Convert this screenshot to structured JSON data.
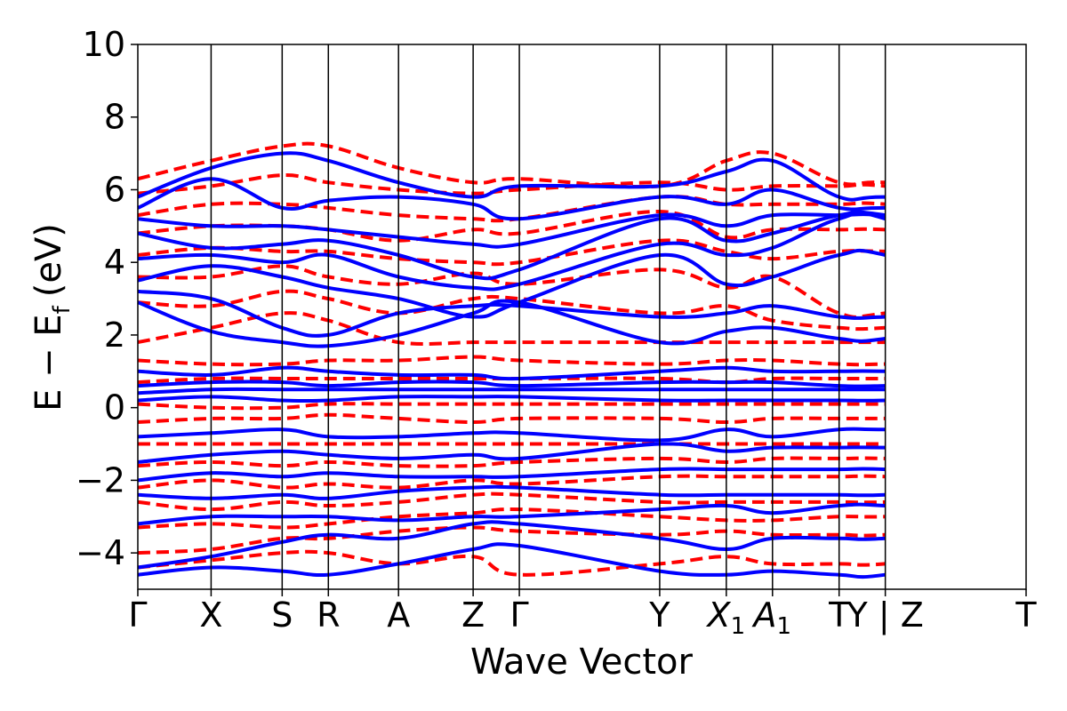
{
  "chart_data": {
    "type": "line",
    "xlabel": "Wave Vector",
    "ylabel": "E − E_f (eV)",
    "ylabel_parts": {
      "main": "E − E",
      "sub": "f",
      "unit": "(eV)"
    },
    "ylim": [
      -5,
      10
    ],
    "yticks": [
      -4,
      -2,
      0,
      2,
      4,
      6,
      8,
      10
    ],
    "ytick_labels": [
      "−4",
      "−2",
      "0",
      "2",
      "4",
      "6",
      "8",
      "10"
    ],
    "kpath": [
      {
        "label": "Γ",
        "k": 0.0
      },
      {
        "label": "X",
        "k": 0.0825
      },
      {
        "label": "S",
        "k": 0.1625
      },
      {
        "label": "R",
        "k": 0.2145
      },
      {
        "label": "A",
        "k": 0.2935
      },
      {
        "label": "Z",
        "k": 0.3775
      },
      {
        "label": "Γ",
        "k": 0.4295
      },
      {
        "label": "Y",
        "k": 0.5875
      },
      {
        "label": "X",
        "sub": "1",
        "k": 0.6625
      },
      {
        "label": "A",
        "sub": "1",
        "k": 0.7145
      },
      {
        "label": "T",
        "k": 0.7895
      },
      {
        "label": "Y | Z",
        "k": 0.8415
      },
      {
        "label": "T",
        "k": 1.0
      }
    ],
    "xlim": [
      0,
      1
    ],
    "grid": false,
    "series": [
      {
        "style": "solid",
        "color": "#0000ff",
        "bands": [
          [
            -4.6,
            -4.4,
            -4.5,
            -4.6,
            -4.3,
            -3.9,
            -3.8,
            -4.5,
            -4.6,
            -4.5,
            -4.6,
            -4.6,
            -3.9,
            -4.6
          ],
          [
            -4.4,
            -4.1,
            -3.7,
            -3.5,
            -3.6,
            -3.2,
            -3.2,
            -3.6,
            -3.9,
            -3.6,
            -3.6,
            -3.6,
            -3.3,
            -3.5
          ],
          [
            -3.2,
            -3.0,
            -3.0,
            -3.0,
            -3.1,
            -3.0,
            -3.0,
            -2.8,
            -2.7,
            -2.9,
            -2.7,
            -2.7,
            -3.0,
            -2.6
          ],
          [
            -2.4,
            -2.5,
            -2.4,
            -2.5,
            -2.3,
            -2.2,
            -2.2,
            -2.4,
            -2.4,
            -2.4,
            -2.4,
            -2.4,
            -2.2,
            -2.4
          ],
          [
            -2.0,
            -1.8,
            -1.9,
            -1.8,
            -1.9,
            -1.9,
            -1.9,
            -1.7,
            -1.7,
            -1.7,
            -1.7,
            -1.7,
            -1.9,
            -1.8
          ],
          [
            -1.5,
            -1.3,
            -1.2,
            -1.3,
            -1.4,
            -1.3,
            -1.4,
            -1.0,
            -1.2,
            -1.1,
            -1.1,
            -1.1,
            -1.2,
            -1.0
          ],
          [
            -0.8,
            -0.7,
            -0.6,
            -0.8,
            -0.8,
            -0.7,
            -0.7,
            -0.9,
            -0.6,
            -0.8,
            -0.6,
            -0.6,
            -0.6,
            -0.9
          ],
          [
            0.2,
            0.3,
            0.2,
            0.2,
            0.3,
            0.3,
            0.3,
            0.2,
            0.2,
            0.2,
            0.2,
            0.2,
            0.3,
            0.2
          ],
          [
            0.4,
            0.5,
            0.5,
            0.5,
            0.5,
            0.5,
            0.5,
            0.5,
            0.5,
            0.5,
            0.5,
            0.5,
            0.5,
            0.5
          ],
          [
            0.6,
            0.7,
            0.7,
            0.6,
            0.7,
            0.7,
            0.6,
            0.7,
            0.7,
            0.7,
            0.6,
            0.6,
            0.7,
            0.6
          ],
          [
            1.0,
            0.9,
            1.1,
            1.0,
            0.9,
            0.9,
            0.8,
            1.0,
            1.1,
            1.0,
            1.0,
            1.0,
            0.9,
            1.0
          ],
          [
            2.9,
            2.1,
            1.8,
            1.7,
            2.0,
            2.6,
            2.9,
            1.8,
            2.1,
            2.2,
            1.9,
            1.9,
            2.6,
            2.1
          ],
          [
            3.2,
            3.0,
            2.2,
            2.0,
            2.6,
            2.8,
            2.8,
            2.5,
            2.6,
            2.8,
            2.5,
            2.5,
            2.7,
            3.0
          ],
          [
            3.5,
            3.9,
            3.6,
            3.3,
            3.0,
            2.5,
            2.9,
            4.2,
            3.4,
            3.6,
            4.2,
            4.2,
            3.0,
            4.1
          ],
          [
            4.1,
            4.2,
            4.0,
            4.2,
            3.6,
            3.3,
            3.4,
            4.5,
            4.2,
            4.4,
            5.2,
            5.2,
            3.6,
            4.7
          ],
          [
            4.8,
            4.4,
            4.5,
            4.6,
            4.2,
            3.6,
            3.8,
            5.2,
            4.6,
            4.8,
            5.3,
            5.3,
            4.6,
            5.2
          ],
          [
            5.2,
            5.0,
            5.0,
            4.9,
            4.7,
            4.5,
            4.5,
            5.3,
            5.0,
            5.3,
            5.3,
            5.3,
            5.0,
            5.4
          ],
          [
            5.5,
            6.3,
            5.5,
            5.7,
            5.8,
            5.6,
            5.2,
            5.8,
            5.6,
            6.0,
            5.5,
            5.5,
            5.5,
            6.0
          ],
          [
            5.8,
            6.6,
            7.0,
            6.8,
            6.2,
            5.8,
            6.1,
            6.1,
            6.5,
            6.8,
            5.8,
            5.8,
            5.7,
            6.1
          ]
        ]
      },
      {
        "style": "dashed",
        "color": "#ff0000",
        "bands": [
          [
            -4.4,
            -4.2,
            -4.0,
            -4.0,
            -4.3,
            -4.1,
            -4.6,
            -4.3,
            -4.1,
            -4.3,
            -4.3,
            -4.3,
            -3.9,
            -4.3
          ],
          [
            -4.0,
            -3.9,
            -3.6,
            -3.6,
            -3.4,
            -3.3,
            -3.4,
            -3.5,
            -3.4,
            -3.5,
            -3.5,
            -3.5,
            -3.2,
            -3.6
          ],
          [
            -3.3,
            -3.2,
            -3.3,
            -3.2,
            -3.0,
            -2.9,
            -2.8,
            -3.0,
            -3.1,
            -3.1,
            -3.0,
            -3.0,
            -2.9,
            -3.0
          ],
          [
            -2.6,
            -2.8,
            -2.6,
            -2.7,
            -2.6,
            -2.4,
            -2.4,
            -2.6,
            -2.6,
            -2.6,
            -2.6,
            -2.6,
            -2.5,
            -2.6
          ],
          [
            -2.2,
            -2.0,
            -2.2,
            -2.1,
            -2.2,
            -2.0,
            -2.1,
            -1.9,
            -1.9,
            -1.9,
            -1.9,
            -1.9,
            -2.1,
            -1.9
          ],
          [
            -1.6,
            -1.5,
            -1.6,
            -1.5,
            -1.6,
            -1.6,
            -1.5,
            -1.4,
            -1.5,
            -1.4,
            -1.4,
            -1.4,
            -1.5,
            -1.4
          ],
          [
            -1.0,
            -1.0,
            -1.0,
            -1.0,
            -1.0,
            -1.0,
            -1.0,
            -1.0,
            -1.0,
            -1.0,
            -1.0,
            -1.0,
            -1.0,
            -1.0
          ],
          [
            -0.4,
            -0.3,
            -0.3,
            -0.2,
            -0.3,
            -0.4,
            -0.3,
            -0.3,
            -0.4,
            -0.3,
            -0.3,
            -0.3,
            -0.3,
            -0.3
          ],
          [
            0.1,
            0.0,
            0.0,
            0.1,
            0.1,
            0.1,
            0.1,
            0.1,
            0.1,
            0.1,
            0.1,
            0.1,
            0.1,
            0.1
          ],
          [
            0.7,
            0.8,
            0.8,
            0.8,
            0.8,
            0.8,
            0.8,
            0.8,
            0.7,
            0.8,
            0.8,
            0.8,
            0.8,
            0.8
          ],
          [
            1.3,
            1.2,
            1.2,
            1.3,
            1.3,
            1.4,
            1.3,
            1.2,
            1.3,
            1.3,
            1.2,
            1.2,
            1.3,
            1.2
          ],
          [
            1.8,
            2.2,
            2.6,
            2.4,
            1.8,
            1.8,
            1.8,
            1.8,
            1.8,
            1.8,
            1.8,
            1.8,
            1.8,
            1.8
          ],
          [
            2.9,
            2.8,
            3.2,
            3.0,
            2.6,
            3.0,
            3.0,
            2.6,
            2.8,
            2.4,
            2.2,
            2.2,
            2.5,
            2.2
          ],
          [
            3.6,
            3.6,
            3.9,
            3.6,
            3.4,
            3.7,
            3.4,
            3.8,
            3.3,
            3.6,
            2.6,
            2.6,
            3.2,
            3.3
          ],
          [
            4.2,
            4.4,
            4.3,
            4.3,
            4.1,
            4.0,
            4.0,
            4.6,
            4.3,
            4.1,
            4.3,
            4.3,
            4.2,
            4.6
          ],
          [
            4.8,
            5.0,
            5.0,
            4.9,
            4.6,
            4.9,
            4.8,
            5.4,
            4.7,
            4.9,
            4.9,
            4.9,
            4.7,
            5.1
          ],
          [
            5.3,
            5.6,
            5.6,
            5.5,
            5.3,
            5.2,
            5.2,
            5.8,
            5.6,
            5.6,
            5.6,
            5.6,
            5.2,
            5.5
          ],
          [
            5.9,
            6.1,
            6.4,
            6.2,
            6.0,
            5.9,
            6.0,
            6.2,
            6.0,
            6.1,
            6.1,
            6.1,
            5.6,
            5.9
          ],
          [
            6.3,
            6.8,
            7.2,
            7.2,
            6.6,
            6.2,
            6.3,
            6.1,
            6.8,
            7.0,
            6.2,
            6.2,
            6.0,
            6.2
          ]
        ]
      }
    ]
  }
}
